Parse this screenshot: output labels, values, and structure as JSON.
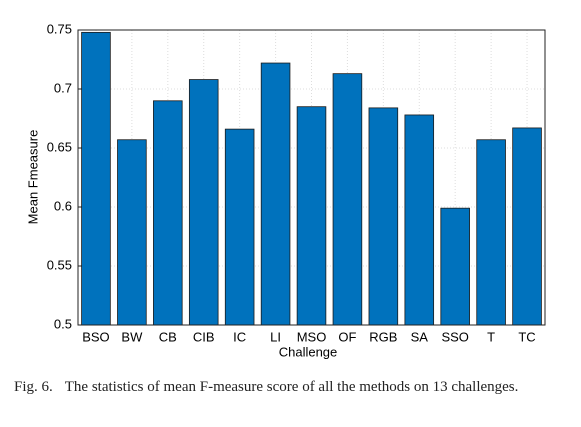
{
  "chart_data": {
    "type": "bar",
    "xlabel": "Challenge",
    "ylabel": "Mean Fmeasure",
    "categories": [
      "BSO",
      "BW",
      "CB",
      "CIB",
      "IC",
      "LI",
      "MSO",
      "OF",
      "RGB",
      "SA",
      "SSO",
      "T",
      "TC"
    ],
    "values": [
      0.748,
      0.657,
      0.69,
      0.708,
      0.666,
      0.722,
      0.685,
      0.713,
      0.684,
      0.678,
      0.599,
      0.657,
      0.667
    ],
    "color": "#0072bd",
    "ylim": [
      0.5,
      0.75
    ],
    "yticks": [
      0.5,
      0.55,
      0.6,
      0.65,
      0.7,
      0.75
    ],
    "grid": true
  },
  "caption": {
    "label": "Fig. 6.",
    "text": "The statistics of mean F-measure score of all the methods on 13 challenges."
  }
}
